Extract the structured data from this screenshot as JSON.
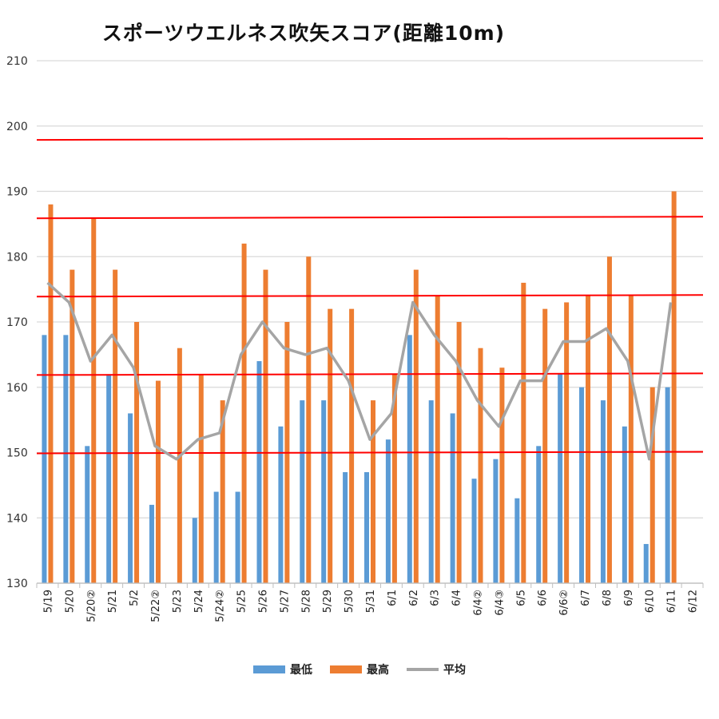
{
  "chart_data": {
    "type": "bar",
    "title": "スポーツウエルネス吹矢スコア(距離10m)",
    "categories": [
      "5/19",
      "5/20",
      "5/20②",
      "5/21",
      "5/2",
      "5/22②",
      "5/23",
      "5/24",
      "5/24②",
      "5/25",
      "5/26",
      "5/27",
      "5/28",
      "5/29",
      "5/30",
      "5/31",
      "6/1",
      "6/2",
      "6/3",
      "6/4",
      "6/4②",
      "6/4③",
      "6/5",
      "6/6",
      "6/6②",
      "6/7",
      "6/8",
      "6/9",
      "6/10",
      "6/11",
      "6/12"
    ],
    "series": [
      {
        "name": "最低",
        "type": "bar",
        "color": "#5B9BD5",
        "values": [
          168,
          168,
          151,
          162,
          156,
          142,
          null,
          140,
          144,
          144,
          164,
          154,
          158,
          158,
          147,
          147,
          152,
          168,
          158,
          156,
          146,
          149,
          143,
          151,
          162,
          160,
          158,
          154,
          136,
          160,
          null
        ]
      },
      {
        "name": "最高",
        "type": "bar",
        "color": "#ED7D31",
        "values": [
          188,
          178,
          186,
          178,
          170,
          161,
          166,
          162,
          158,
          182,
          178,
          170,
          180,
          172,
          172,
          158,
          162,
          178,
          174,
          170,
          166,
          163,
          176,
          172,
          173,
          174,
          180,
          174,
          160,
          190,
          null
        ]
      },
      {
        "name": "平均",
        "type": "line",
        "color": "#A5A5A5",
        "values": [
          176,
          173,
          164,
          168,
          163,
          151,
          149,
          152,
          153,
          165,
          170,
          166,
          165,
          166,
          161,
          152,
          156,
          173,
          168,
          164,
          158,
          154,
          161,
          161,
          167,
          167,
          169,
          164,
          149,
          173,
          null
        ]
      }
    ],
    "ylim": [
      130,
      210
    ],
    "yticks": [
      130,
      140,
      150,
      160,
      170,
      180,
      190,
      200,
      210
    ],
    "reference_lines": [
      150,
      162,
      174,
      186,
      198
    ],
    "reference_color": "#FF0000",
    "grid": true,
    "legend_position": "bottom"
  }
}
